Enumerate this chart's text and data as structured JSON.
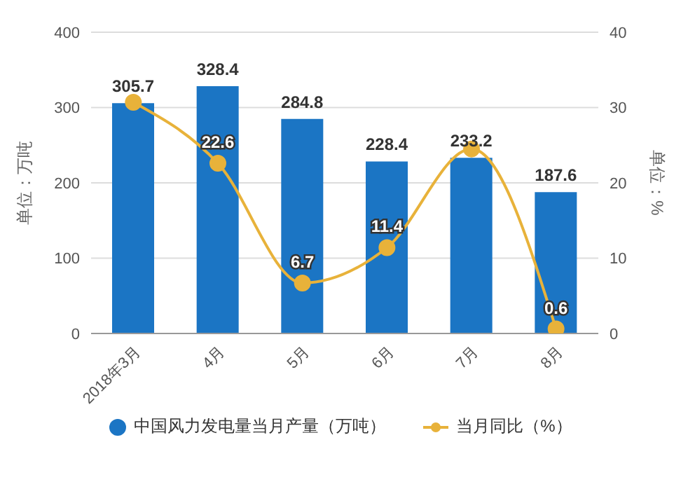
{
  "chart_data": {
    "type": "bar",
    "ylabel": "单位：万吨",
    "y2label": "单位：%",
    "categories": [
      "2018年3月",
      "4月",
      "5月",
      "6月",
      "7月",
      "8月"
    ],
    "series": [
      {
        "name": "中国风力发电量当月产量（万吨）",
        "color": "#1b75c4",
        "values": [
          305.7,
          328.4,
          284.8,
          228.4,
          233.2,
          187.6
        ],
        "data_labels": true
      },
      {
        "name": "当月同比（%）",
        "type": "line",
        "axis": "y2",
        "color": "#e8b23a",
        "values": [
          30.7,
          22.6,
          6.7,
          11.4,
          24.5,
          0.6
        ],
        "value_labels": [
          null,
          "22.6",
          "6.7",
          "11.4",
          null,
          "0.6"
        ],
        "marker": "circle"
      }
    ],
    "ylim": [
      0,
      400
    ],
    "yticks": [
      0,
      100,
      200,
      300,
      400
    ],
    "y2lim": [
      0,
      40
    ],
    "y2ticks": [
      0,
      10,
      20,
      30,
      40
    ],
    "grid": "y",
    "legend": "bottom"
  }
}
